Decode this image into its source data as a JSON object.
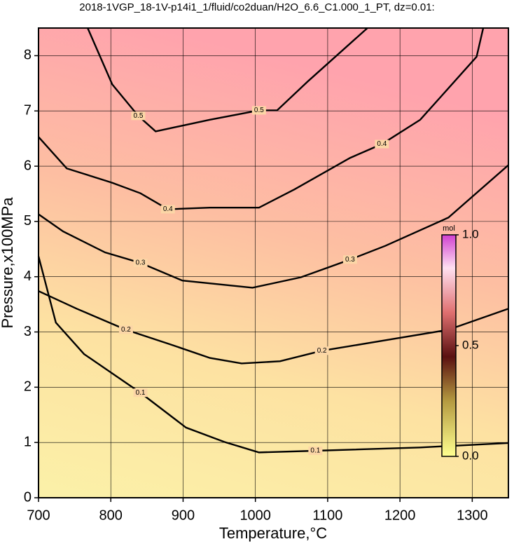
{
  "chart_data": {
    "type": "contour",
    "title": "2018-1VGP_18-1V-p14i1_1/fluid/co2duan/H2O_6.6_C1.000_1_PT, dz=0.01:",
    "x_label": "Temperature,°C",
    "y_label": "Pressure,x100MPa",
    "xlim": [
      700,
      1350
    ],
    "ylim": [
      0,
      8.5
    ],
    "xticks": [
      700,
      800,
      900,
      1000,
      1100,
      1200,
      1300
    ],
    "yticks": [
      0,
      1,
      2,
      3,
      4,
      5,
      6,
      7,
      8
    ],
    "grid": true,
    "contours": [
      {
        "level": 0.5,
        "x": [
          768,
          802,
          838,
          862,
          937,
          1005,
          1030,
          1073,
          1155
        ],
        "y": [
          8.5,
          7.48,
          6.91,
          6.63,
          6.84,
          7.01,
          7.01,
          7.54,
          8.5
        ]
      },
      {
        "level": 0.4,
        "x": [
          700,
          739,
          802,
          841,
          879,
          937,
          1005,
          1054,
          1131,
          1175,
          1228,
          1306,
          1315
        ],
        "y": [
          6.53,
          5.96,
          5.7,
          5.51,
          5.22,
          5.25,
          5.25,
          5.58,
          6.15,
          6.4,
          6.84,
          7.98,
          8.49
        ]
      },
      {
        "level": 0.3,
        "x": [
          700,
          734,
          792,
          841,
          899,
          996,
          1063,
          1131,
          1180,
          1267,
          1350
        ],
        "y": [
          5.13,
          4.82,
          4.44,
          4.25,
          3.93,
          3.8,
          3.99,
          4.31,
          4.56,
          5.07,
          6.02
        ]
      },
      {
        "level": 0.2,
        "x": [
          700,
          753,
          821,
          879,
          937,
          981,
          1034,
          1092,
          1180,
          1267,
          1350
        ],
        "y": [
          3.74,
          3.42,
          3.04,
          2.79,
          2.53,
          2.43,
          2.47,
          2.66,
          2.85,
          3.04,
          3.42
        ]
      },
      {
        "level": 0.1,
        "x": [
          700,
          724,
          763,
          841,
          904,
          957,
          1005,
          1083,
          1228,
          1350
        ],
        "y": [
          4.37,
          3.17,
          2.6,
          1.9,
          1.27,
          1.01,
          0.82,
          0.85,
          0.91,
          0.99
        ]
      }
    ],
    "colorbar": {
      "label": "mol",
      "lim": [
        0,
        1
      ],
      "ticks": [
        {
          "value": 1,
          "label": "1.0"
        },
        {
          "value": 0.5,
          "label": "0.5"
        },
        {
          "value": 0,
          "label": "0.0"
        }
      ]
    }
  }
}
